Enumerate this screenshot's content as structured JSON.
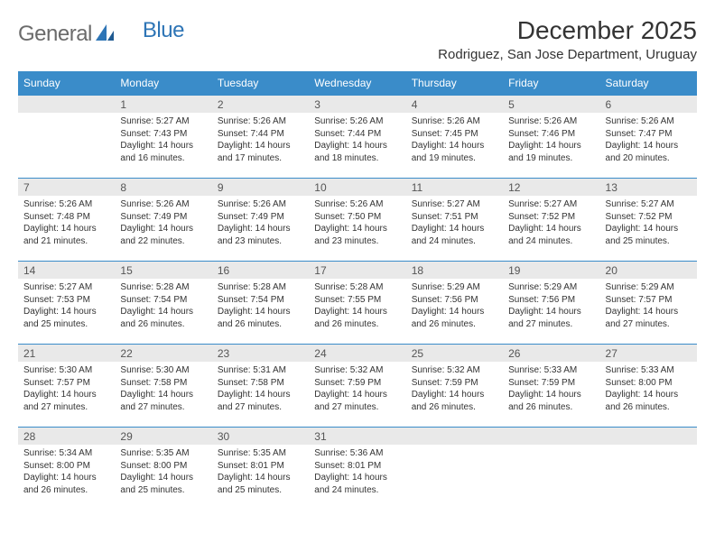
{
  "brand": {
    "general": "General",
    "blue": "Blue"
  },
  "title": "December 2025",
  "location": "Rodriguez, San Jose Department, Uruguay",
  "days_of_week": [
    "Sunday",
    "Monday",
    "Tuesday",
    "Wednesday",
    "Thursday",
    "Friday",
    "Saturday"
  ],
  "colors": {
    "header_bg": "#3a8cc9",
    "header_text": "#ffffff",
    "daybar_bg": "#e9e9e9",
    "daybar_border": "#3a8cc9",
    "text": "#333333",
    "logo_gray": "#6b6b6b",
    "logo_blue": "#2e75b6"
  },
  "weeks": [
    [
      {
        "empty": true
      },
      {
        "num": "1",
        "sunrise": "Sunrise: 5:27 AM",
        "sunset": "Sunset: 7:43 PM",
        "daylight": "Daylight: 14 hours and 16 minutes."
      },
      {
        "num": "2",
        "sunrise": "Sunrise: 5:26 AM",
        "sunset": "Sunset: 7:44 PM",
        "daylight": "Daylight: 14 hours and 17 minutes."
      },
      {
        "num": "3",
        "sunrise": "Sunrise: 5:26 AM",
        "sunset": "Sunset: 7:44 PM",
        "daylight": "Daylight: 14 hours and 18 minutes."
      },
      {
        "num": "4",
        "sunrise": "Sunrise: 5:26 AM",
        "sunset": "Sunset: 7:45 PM",
        "daylight": "Daylight: 14 hours and 19 minutes."
      },
      {
        "num": "5",
        "sunrise": "Sunrise: 5:26 AM",
        "sunset": "Sunset: 7:46 PM",
        "daylight": "Daylight: 14 hours and 19 minutes."
      },
      {
        "num": "6",
        "sunrise": "Sunrise: 5:26 AM",
        "sunset": "Sunset: 7:47 PM",
        "daylight": "Daylight: 14 hours and 20 minutes."
      }
    ],
    [
      {
        "num": "7",
        "sunrise": "Sunrise: 5:26 AM",
        "sunset": "Sunset: 7:48 PM",
        "daylight": "Daylight: 14 hours and 21 minutes."
      },
      {
        "num": "8",
        "sunrise": "Sunrise: 5:26 AM",
        "sunset": "Sunset: 7:49 PM",
        "daylight": "Daylight: 14 hours and 22 minutes."
      },
      {
        "num": "9",
        "sunrise": "Sunrise: 5:26 AM",
        "sunset": "Sunset: 7:49 PM",
        "daylight": "Daylight: 14 hours and 23 minutes."
      },
      {
        "num": "10",
        "sunrise": "Sunrise: 5:26 AM",
        "sunset": "Sunset: 7:50 PM",
        "daylight": "Daylight: 14 hours and 23 minutes."
      },
      {
        "num": "11",
        "sunrise": "Sunrise: 5:27 AM",
        "sunset": "Sunset: 7:51 PM",
        "daylight": "Daylight: 14 hours and 24 minutes."
      },
      {
        "num": "12",
        "sunrise": "Sunrise: 5:27 AM",
        "sunset": "Sunset: 7:52 PM",
        "daylight": "Daylight: 14 hours and 24 minutes."
      },
      {
        "num": "13",
        "sunrise": "Sunrise: 5:27 AM",
        "sunset": "Sunset: 7:52 PM",
        "daylight": "Daylight: 14 hours and 25 minutes."
      }
    ],
    [
      {
        "num": "14",
        "sunrise": "Sunrise: 5:27 AM",
        "sunset": "Sunset: 7:53 PM",
        "daylight": "Daylight: 14 hours and 25 minutes."
      },
      {
        "num": "15",
        "sunrise": "Sunrise: 5:28 AM",
        "sunset": "Sunset: 7:54 PM",
        "daylight": "Daylight: 14 hours and 26 minutes."
      },
      {
        "num": "16",
        "sunrise": "Sunrise: 5:28 AM",
        "sunset": "Sunset: 7:54 PM",
        "daylight": "Daylight: 14 hours and 26 minutes."
      },
      {
        "num": "17",
        "sunrise": "Sunrise: 5:28 AM",
        "sunset": "Sunset: 7:55 PM",
        "daylight": "Daylight: 14 hours and 26 minutes."
      },
      {
        "num": "18",
        "sunrise": "Sunrise: 5:29 AM",
        "sunset": "Sunset: 7:56 PM",
        "daylight": "Daylight: 14 hours and 26 minutes."
      },
      {
        "num": "19",
        "sunrise": "Sunrise: 5:29 AM",
        "sunset": "Sunset: 7:56 PM",
        "daylight": "Daylight: 14 hours and 27 minutes."
      },
      {
        "num": "20",
        "sunrise": "Sunrise: 5:29 AM",
        "sunset": "Sunset: 7:57 PM",
        "daylight": "Daylight: 14 hours and 27 minutes."
      }
    ],
    [
      {
        "num": "21",
        "sunrise": "Sunrise: 5:30 AM",
        "sunset": "Sunset: 7:57 PM",
        "daylight": "Daylight: 14 hours and 27 minutes."
      },
      {
        "num": "22",
        "sunrise": "Sunrise: 5:30 AM",
        "sunset": "Sunset: 7:58 PM",
        "daylight": "Daylight: 14 hours and 27 minutes."
      },
      {
        "num": "23",
        "sunrise": "Sunrise: 5:31 AM",
        "sunset": "Sunset: 7:58 PM",
        "daylight": "Daylight: 14 hours and 27 minutes."
      },
      {
        "num": "24",
        "sunrise": "Sunrise: 5:32 AM",
        "sunset": "Sunset: 7:59 PM",
        "daylight": "Daylight: 14 hours and 27 minutes."
      },
      {
        "num": "25",
        "sunrise": "Sunrise: 5:32 AM",
        "sunset": "Sunset: 7:59 PM",
        "daylight": "Daylight: 14 hours and 26 minutes."
      },
      {
        "num": "26",
        "sunrise": "Sunrise: 5:33 AM",
        "sunset": "Sunset: 7:59 PM",
        "daylight": "Daylight: 14 hours and 26 minutes."
      },
      {
        "num": "27",
        "sunrise": "Sunrise: 5:33 AM",
        "sunset": "Sunset: 8:00 PM",
        "daylight": "Daylight: 14 hours and 26 minutes."
      }
    ],
    [
      {
        "num": "28",
        "sunrise": "Sunrise: 5:34 AM",
        "sunset": "Sunset: 8:00 PM",
        "daylight": "Daylight: 14 hours and 26 minutes."
      },
      {
        "num": "29",
        "sunrise": "Sunrise: 5:35 AM",
        "sunset": "Sunset: 8:00 PM",
        "daylight": "Daylight: 14 hours and 25 minutes."
      },
      {
        "num": "30",
        "sunrise": "Sunrise: 5:35 AM",
        "sunset": "Sunset: 8:01 PM",
        "daylight": "Daylight: 14 hours and 25 minutes."
      },
      {
        "num": "31",
        "sunrise": "Sunrise: 5:36 AM",
        "sunset": "Sunset: 8:01 PM",
        "daylight": "Daylight: 14 hours and 24 minutes."
      },
      {
        "empty": true
      },
      {
        "empty": true
      },
      {
        "empty": true
      }
    ]
  ]
}
